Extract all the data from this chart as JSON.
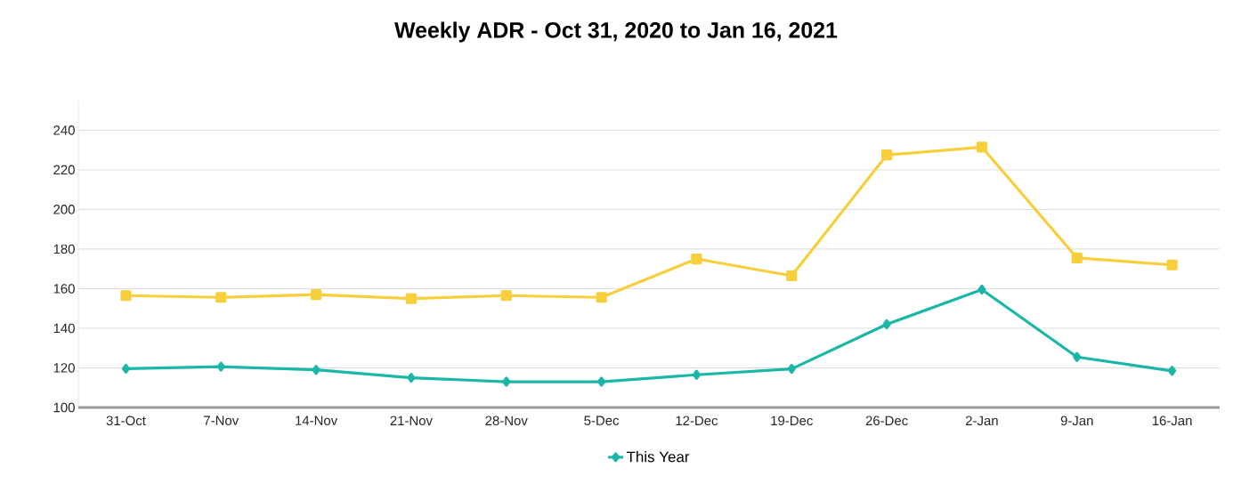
{
  "chart_data": {
    "type": "line",
    "title": "Weekly ADR - Oct 31, 2020 to Jan 16, 2021",
    "categories": [
      "31-Oct",
      "7-Nov",
      "14-Nov",
      "21-Nov",
      "28-Nov",
      "5-Dec",
      "12-Dec",
      "19-Dec",
      "26-Dec",
      "2-Jan",
      "9-Jan",
      "16-Jan"
    ],
    "series": [
      {
        "color": "#f7cf3d",
        "marker": "square",
        "values": [
          156.5,
          155.6,
          157,
          155,
          156.5,
          155.6,
          175,
          166.5,
          227.5,
          231.5,
          175.5,
          172
        ]
      },
      {
        "name": "This Year",
        "color": "#1ab7a8",
        "marker": "diamond",
        "values": [
          119.6,
          120.6,
          119,
          115,
          113,
          113,
          116.5,
          119.5,
          142,
          159.5,
          125.5,
          118.5
        ]
      }
    ],
    "ylim": [
      100,
      255
    ],
    "yticks": [
      100,
      120,
      140,
      160,
      180,
      200,
      220,
      240
    ],
    "grid": "y",
    "legend": "bottom",
    "line_style": "solid"
  }
}
